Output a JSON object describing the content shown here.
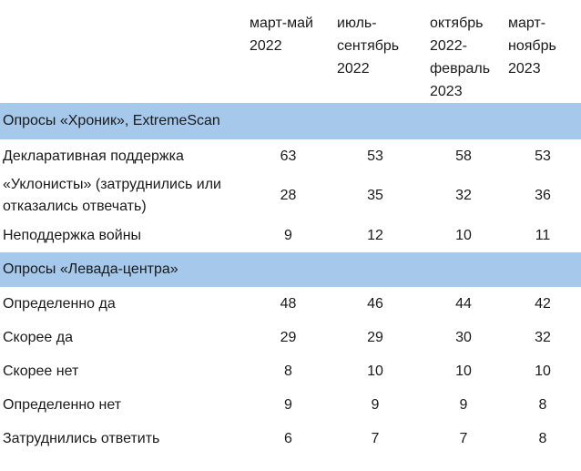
{
  "columns": [
    {
      "line1": "март-май",
      "line2": "2022"
    },
    {
      "line1": "июль-",
      "line2": "сентябрь",
      "line3": "2022"
    },
    {
      "line1": "октябрь",
      "line2": "2022-",
      "line3": "февраль",
      "line4": "2023"
    },
    {
      "line1": "март-",
      "line2": "ноябрь",
      "line3": "2023"
    }
  ],
  "sections": [
    {
      "title": "Опросы «Хроник»,  ExtremeScan",
      "rows": [
        {
          "label": "Декларативная поддержка",
          "values": [
            "63",
            "53",
            "58",
            "53"
          ]
        },
        {
          "label_line1": "«Уклонисты» (затруднились или",
          "label_line2": "отказались отвечать)",
          "values": [
            "28",
            "35",
            "32",
            "36"
          ]
        },
        {
          "label": "Неподдержка войны",
          "values": [
            "9",
            "12",
            "10",
            "11"
          ]
        }
      ]
    },
    {
      "title": "Опросы «Левада-центра»",
      "rows": [
        {
          "label": "Определенно да",
          "values": [
            "48",
            "46",
            "44",
            "42"
          ]
        },
        {
          "label": "Скорее да",
          "values": [
            "29",
            "29",
            "30",
            "32"
          ]
        },
        {
          "label": "Скорее нет",
          "values": [
            "8",
            "10",
            "10",
            "10"
          ]
        },
        {
          "label": "Определенно нет",
          "values": [
            "9",
            "9",
            "9",
            "8"
          ]
        },
        {
          "label": "Затруднились ответить",
          "values": [
            "6",
            "7",
            "7",
            "8"
          ]
        }
      ]
    }
  ],
  "colors": {
    "section_band": "#a6c8eb",
    "text": "#1a1a1a",
    "background": "#ffffff"
  }
}
